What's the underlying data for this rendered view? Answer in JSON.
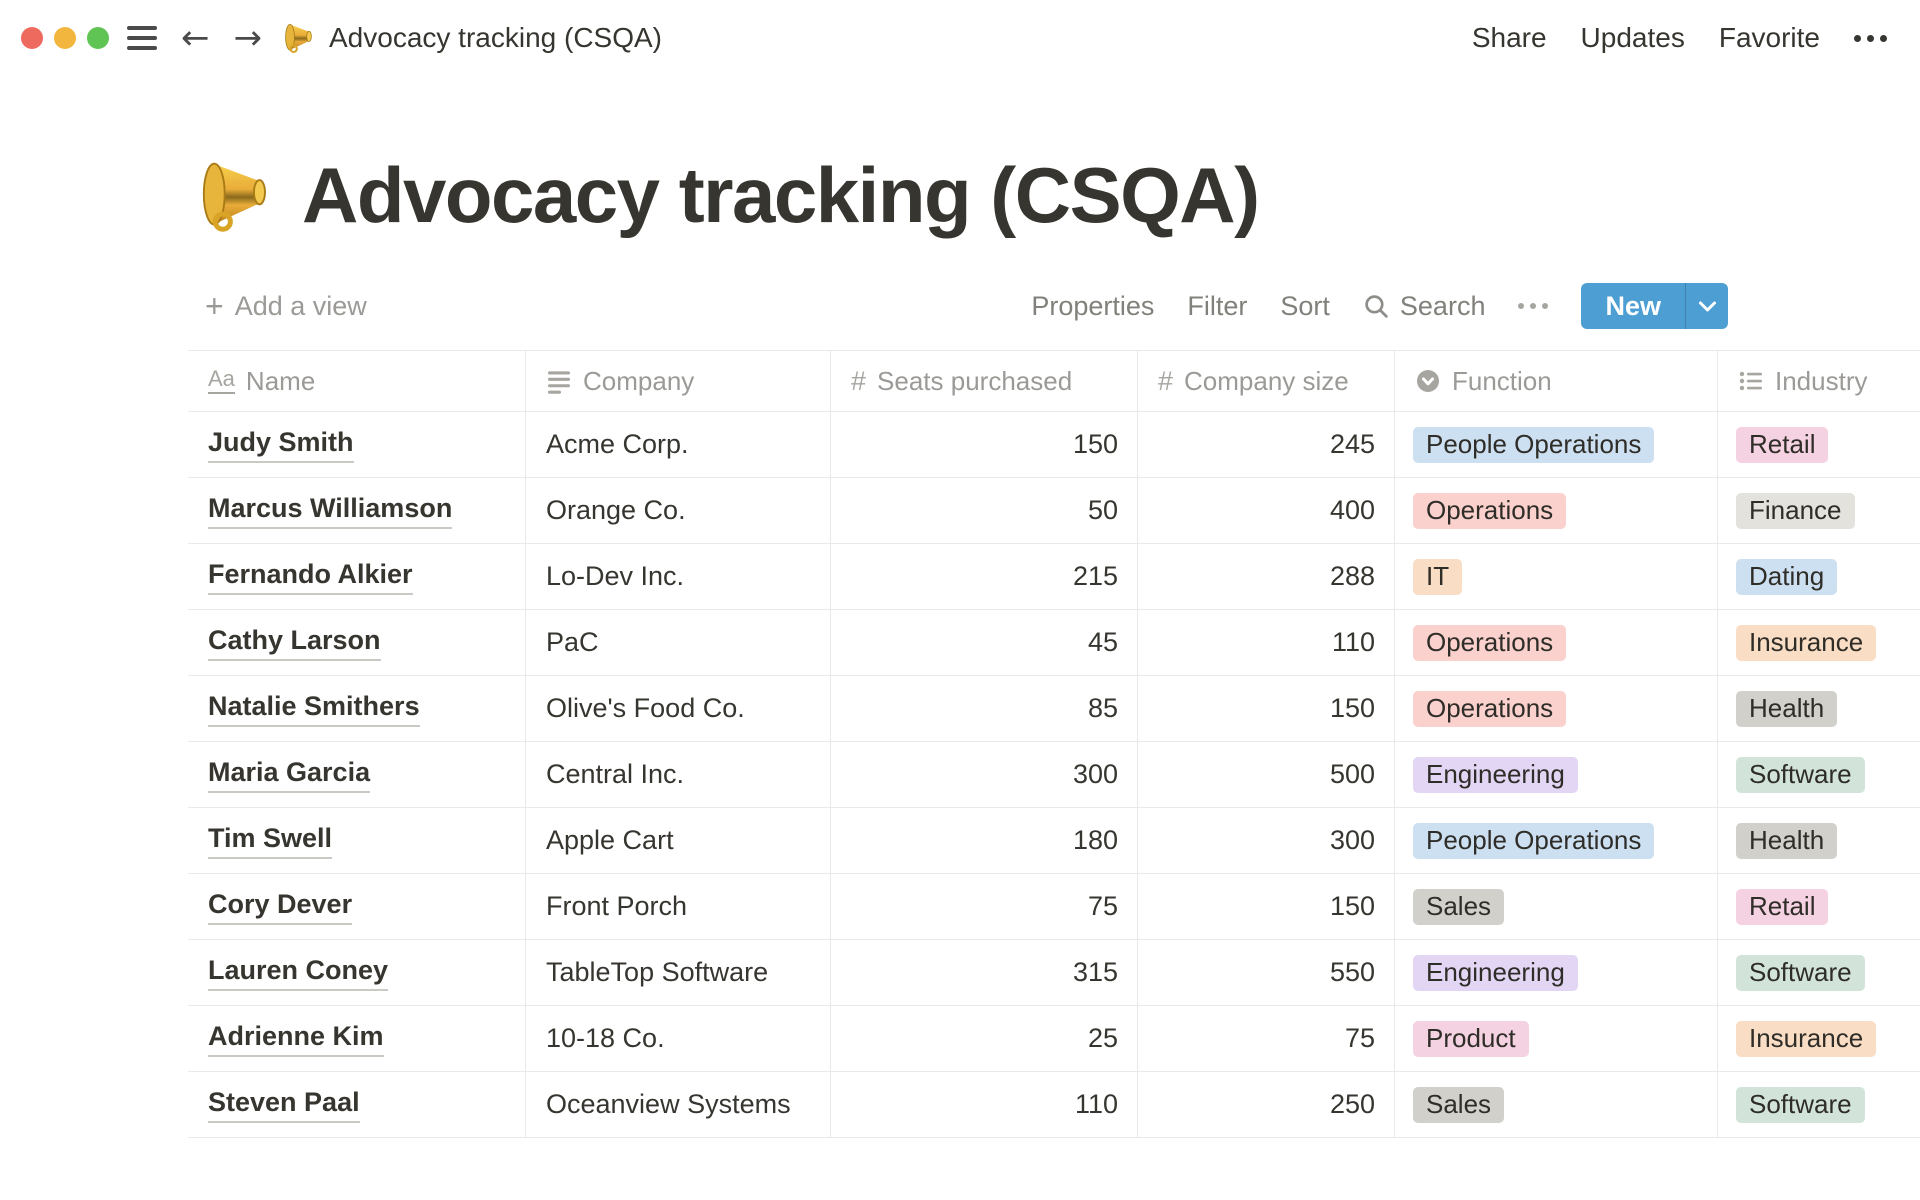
{
  "topbar": {
    "title": "Advocacy tracking (CSQA)",
    "share": "Share",
    "updates": "Updates",
    "favorite": "Favorite",
    "icons": [
      "hamburger-icon",
      "back-arrow-icon",
      "forward-arrow-icon",
      "megaphone-icon",
      "more-dots-icon"
    ]
  },
  "page": {
    "icon": "megaphone-icon",
    "title": "Advocacy tracking (CSQA)"
  },
  "toolbar": {
    "add_view": "Add a view",
    "properties": "Properties",
    "filter": "Filter",
    "sort": "Sort",
    "search": "Search",
    "search_icon": "search-icon",
    "more_icon": "more-dots-icon",
    "new_label": "New"
  },
  "table": {
    "columns": [
      {
        "label": "Name",
        "type": "title",
        "icon": "title-icon"
      },
      {
        "label": "Company",
        "type": "text",
        "icon": "text-icon"
      },
      {
        "label": "Seats purchased",
        "type": "number",
        "icon": "number-icon"
      },
      {
        "label": "Company size",
        "type": "number",
        "icon": "number-icon"
      },
      {
        "label": "Function",
        "type": "select",
        "icon": "select-icon"
      },
      {
        "label": "Industry",
        "type": "multi-select",
        "icon": "multiselect-icon"
      }
    ],
    "rows": [
      {
        "name": "Judy Smith",
        "company": "Acme Corp.",
        "seats": "150",
        "size": "245",
        "function": {
          "label": "People Operations",
          "color": "blue"
        },
        "industry": {
          "label": "Retail",
          "color": "pink"
        }
      },
      {
        "name": "Marcus Williamson",
        "company": "Orange Co.",
        "seats": "50",
        "size": "400",
        "function": {
          "label": "Operations",
          "color": "red"
        },
        "industry": {
          "label": "Finance",
          "color": "lightgray"
        }
      },
      {
        "name": "Fernando Alkier",
        "company": "Lo-Dev Inc.",
        "seats": "215",
        "size": "288",
        "function": {
          "label": "IT",
          "color": "orange"
        },
        "industry": {
          "label": "Dating",
          "color": "blue"
        }
      },
      {
        "name": "Cathy Larson",
        "company": "PaC",
        "seats": "45",
        "size": "110",
        "function": {
          "label": "Operations",
          "color": "red"
        },
        "industry": {
          "label": "Insurance",
          "color": "orange"
        }
      },
      {
        "name": "Natalie Smithers",
        "company": "Olive's Food Co.",
        "seats": "85",
        "size": "150",
        "function": {
          "label": "Operations",
          "color": "red"
        },
        "industry": {
          "label": "Health",
          "color": "gray"
        }
      },
      {
        "name": "Maria Garcia",
        "company": "Central Inc.",
        "seats": "300",
        "size": "500",
        "function": {
          "label": "Engineering",
          "color": "purple"
        },
        "industry": {
          "label": "Software",
          "color": "green"
        }
      },
      {
        "name": "Tim Swell",
        "company": "Apple Cart",
        "seats": "180",
        "size": "300",
        "function": {
          "label": "People Operations",
          "color": "blue"
        },
        "industry": {
          "label": "Health",
          "color": "gray"
        }
      },
      {
        "name": "Cory Dever",
        "company": "Front Porch",
        "seats": "75",
        "size": "150",
        "function": {
          "label": "Sales",
          "color": "gray"
        },
        "industry": {
          "label": "Retail",
          "color": "pink"
        }
      },
      {
        "name": "Lauren Coney",
        "company": "TableTop Software",
        "seats": "315",
        "size": "550",
        "function": {
          "label": "Engineering",
          "color": "purple"
        },
        "industry": {
          "label": "Software",
          "color": "green"
        }
      },
      {
        "name": "Adrienne Kim",
        "company": "10-18 Co.",
        "seats": "25",
        "size": "75",
        "function": {
          "label": "Product",
          "color": "pink"
        },
        "industry": {
          "label": "Insurance",
          "color": "orange"
        }
      },
      {
        "name": "Steven Paal",
        "company": "Oceanview Systems",
        "seats": "110",
        "size": "250",
        "function": {
          "label": "Sales",
          "color": "gray"
        },
        "industry": {
          "label": "Software",
          "color": "green"
        }
      }
    ]
  },
  "colors": {
    "accent_new_button": "#4D9ED3",
    "tag_blue": "#CDE0F1",
    "tag_red": "#FAD1CD",
    "tag_orange": "#F9DDC5",
    "tag_purple": "#E3D6F5",
    "tag_pink": "#F5D2E2",
    "tag_gray": "#D2D0CB",
    "tag_lightgray": "#E3E2DD",
    "tag_green": "#D2E4DA"
  }
}
